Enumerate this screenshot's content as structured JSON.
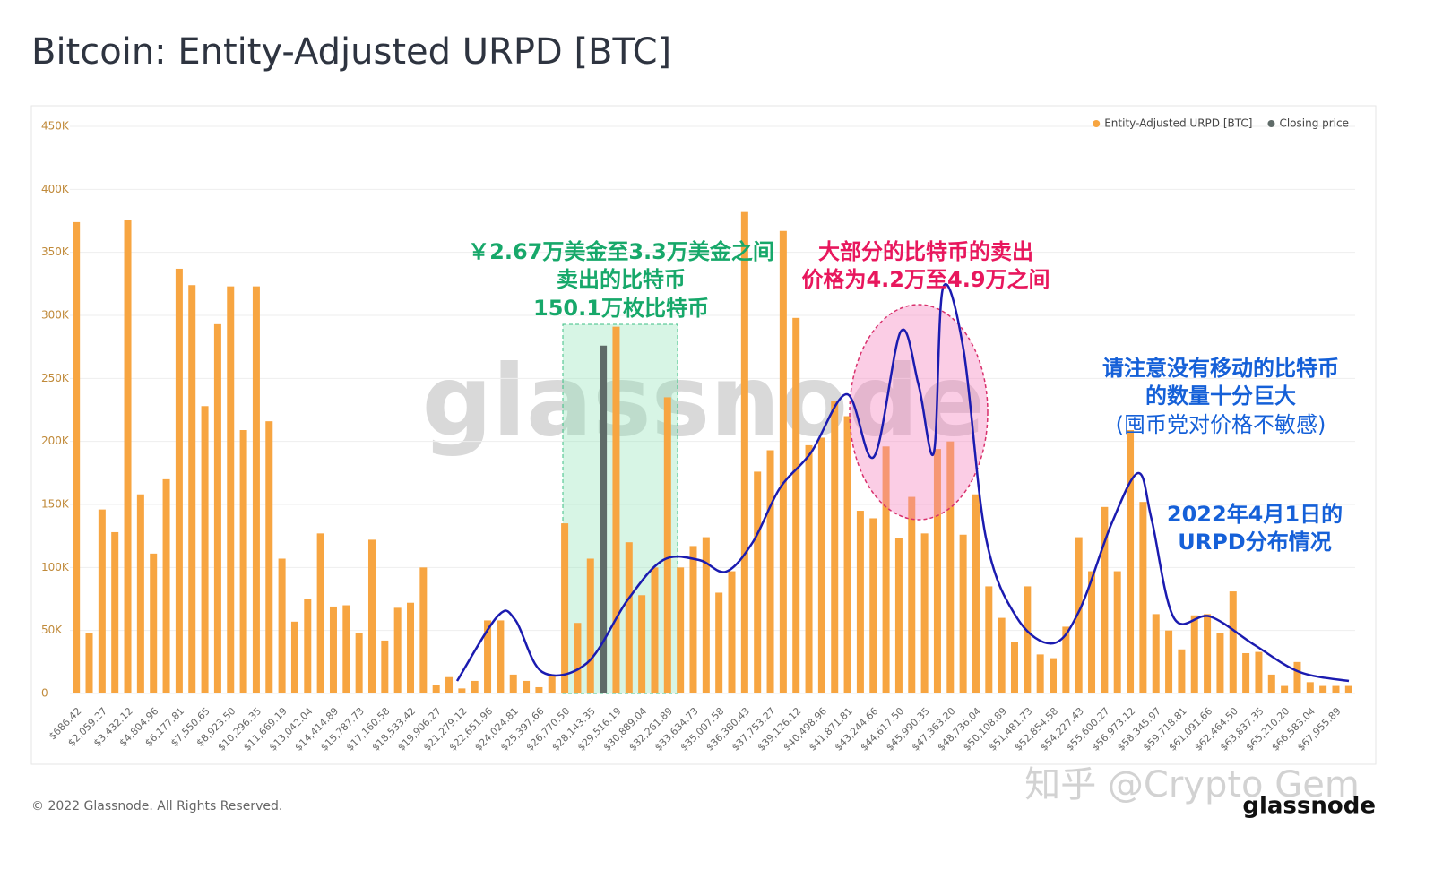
{
  "chart_data": {
    "type": "bar",
    "title": "Bitcoin: Entity-Adjusted URPD [BTC]",
    "categories": [
      "$686.42",
      null,
      "$2,059.27",
      null,
      "$3,432.12",
      null,
      "$4,804.96",
      null,
      "$6,177.81",
      null,
      "$7,550.65",
      null,
      "$8,923.50",
      null,
      "$10,296.35",
      null,
      "$11,669.19",
      null,
      "$13,042.04",
      null,
      "$14,414.89",
      null,
      "$15,787.73",
      null,
      "$17,160.58",
      null,
      "$18,533.42",
      null,
      "$19,906.27",
      null,
      "$21,279.12",
      null,
      "$22,651.96",
      null,
      "$24,024.81",
      null,
      "$25,397.66",
      null,
      "$26,770.50",
      null,
      "$28,143.35",
      null,
      "$29,516.19",
      null,
      "$30,889.04",
      null,
      "$32,261.89",
      null,
      "$33,634.73",
      null,
      "$35,007.58",
      null,
      "$36,380.43",
      null,
      "$37,753.27",
      null,
      "$39,126.12",
      null,
      "$40,498.96",
      null,
      "$41,871.81",
      null,
      "$43,244.66",
      null,
      "$44,617.50",
      null,
      "$45,990.35",
      null,
      "$47,363.20",
      null,
      "$48,736.04",
      null,
      "$50,108.89",
      null,
      "$51,481.73",
      null,
      "$52,854.58",
      null,
      "$54,227.43",
      null,
      "$55,600.27",
      null,
      "$56,973.12",
      null,
      "$58,345.97",
      null,
      "$59,718.81",
      null,
      "$61,091.66",
      null,
      "$62,464.50",
      null,
      "$63,837.35",
      null,
      "$65,210.20",
      null,
      "$66,583.04",
      null,
      "$67,955.89",
      null
    ],
    "series": [
      {
        "name": "Entity-Adjusted URPD [BTC]",
        "color": "#f7a541",
        "values": [
          374000,
          48000,
          146000,
          128000,
          376000,
          158000,
          111000,
          170000,
          337000,
          324000,
          228000,
          293000,
          323000,
          209000,
          323000,
          216000,
          107000,
          57000,
          75000,
          127000,
          69000,
          70000,
          48000,
          122000,
          42000,
          68000,
          72000,
          100000,
          7000,
          13000,
          4000,
          10000,
          58000,
          58000,
          15000,
          10000,
          5000,
          14000,
          135000,
          56000,
          107000,
          null,
          291000,
          120000,
          78000,
          100000,
          235000,
          100000,
          117000,
          124000,
          80000,
          97000,
          382000,
          176000,
          193000,
          367000,
          298000,
          197000,
          203000,
          232000,
          220000,
          145000,
          139000,
          196000,
          123000,
          156000,
          127000,
          194000,
          200000,
          126000,
          158000,
          85000,
          60000,
          41000,
          85000,
          31000,
          28000,
          53000,
          124000,
          97000,
          148000,
          97000,
          209000,
          152000,
          63000,
          50000,
          35000,
          62000,
          63000,
          48000,
          81000,
          32000,
          33000,
          15000,
          6000,
          25000,
          9000,
          6000,
          6000,
          6000
        ]
      },
      {
        "name": "Closing price",
        "color": "#5f6b68",
        "values": [
          null,
          null,
          null,
          null,
          null,
          null,
          null,
          null,
          null,
          null,
          null,
          null,
          null,
          null,
          null,
          null,
          null,
          null,
          null,
          null,
          null,
          null,
          null,
          null,
          null,
          null,
          null,
          null,
          null,
          null,
          null,
          null,
          null,
          null,
          null,
          null,
          null,
          null,
          null,
          null,
          null,
          276000,
          null,
          null,
          null,
          null,
          null,
          null,
          null,
          null,
          null,
          null,
          null,
          null,
          null,
          null,
          null,
          null,
          null,
          null,
          null,
          null,
          null,
          null,
          null,
          null,
          null,
          null,
          null,
          null,
          null,
          null,
          null,
          null,
          null,
          null,
          null,
          null,
          null,
          null,
          null,
          null,
          null,
          null,
          null,
          null,
          null,
          null,
          null,
          null,
          null,
          null,
          null,
          null,
          null,
          null,
          null,
          null,
          null,
          null
        ]
      }
    ],
    "ylim": [
      0,
      450000
    ],
    "yticks": [
      {
        "value": 0,
        "label": "0"
      },
      {
        "value": 50000,
        "label": "50K"
      },
      {
        "value": 100000,
        "label": "100K"
      },
      {
        "value": 150000,
        "label": "150K"
      },
      {
        "value": 200000,
        "label": "200K"
      },
      {
        "value": 250000,
        "label": "250K"
      },
      {
        "value": 300000,
        "label": "300K"
      },
      {
        "value": 350000,
        "label": "350K"
      },
      {
        "value": 400000,
        "label": "400K"
      },
      {
        "value": 450000,
        "label": "450K"
      }
    ],
    "grid": true,
    "legend": "top-right",
    "watermark": "glassnode",
    "annotations": {
      "green": [
        "￥2.67万美金至3.3万美金之间",
        "卖出的比特币",
        "150.1万枚比特币"
      ],
      "red": [
        "大部分的比特币的卖出",
        "价格为4.2万至4.9万之间"
      ],
      "blue": [
        "请注意没有移动的比特币",
        "的数量十分巨大",
        "(囤币党对价格不敏感)"
      ],
      "date": [
        "2022年4月1日的",
        "URPD分布情况"
      ]
    },
    "footer": "© 2022 Glassnode. All Rights Reserved.",
    "logo": "glassnode",
    "credit": "知乎 @Crypto Gem"
  }
}
